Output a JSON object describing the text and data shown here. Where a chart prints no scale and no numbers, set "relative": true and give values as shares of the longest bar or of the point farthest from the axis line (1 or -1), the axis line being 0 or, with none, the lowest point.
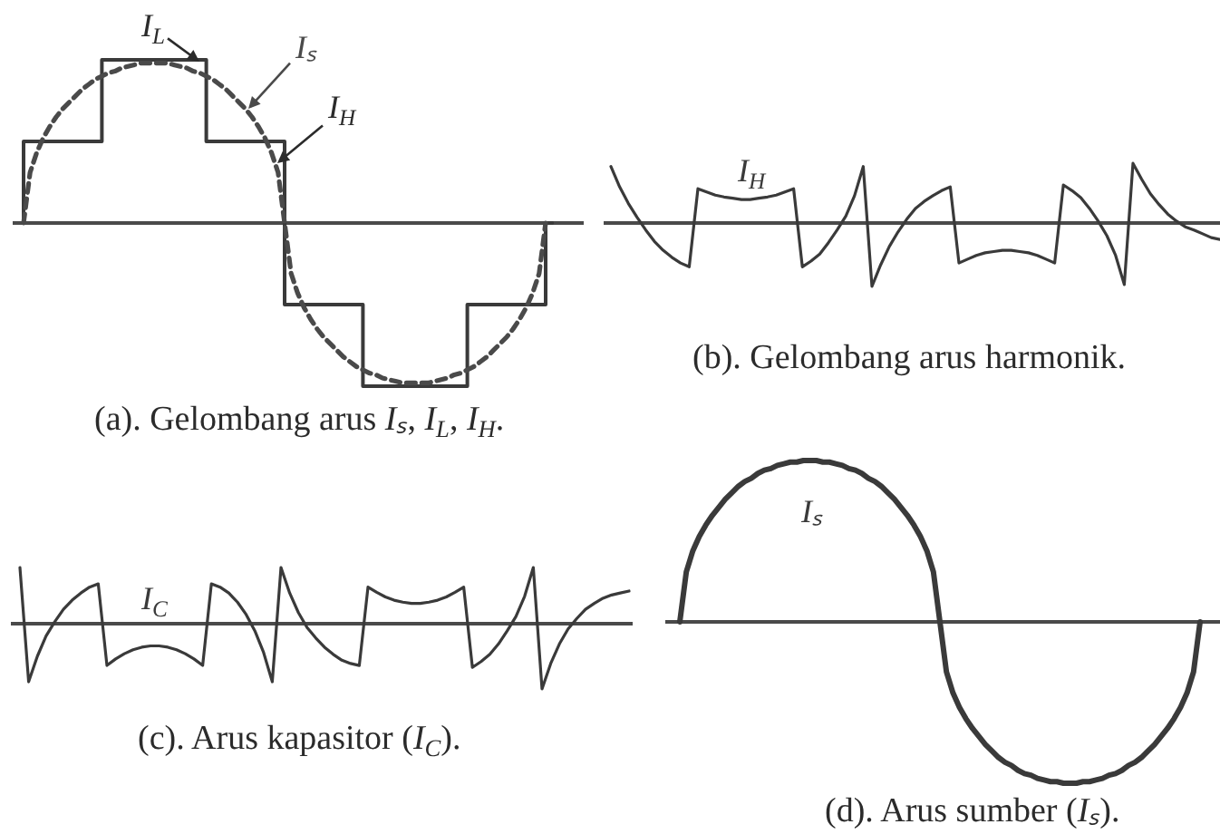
{
  "chart_data": [
    {
      "type": "line",
      "relative": true,
      "title": "(a). Gelombang arus Iₛ, I$_{L}$, I$_{H}$.",
      "annotations": [
        "I$_{L}$",
        "I$_{H}$"
      ],
      "categories": [
        null,
        null,
        null,
        null,
        null,
        null,
        null,
        null,
        null,
        null,
        null,
        null,
        null,
        null,
        null,
        null,
        null,
        null,
        null,
        null,
        null,
        null,
        null,
        null,
        null,
        null,
        null,
        null,
        null,
        null,
        null,
        null,
        null,
        null,
        null,
        null,
        null,
        null,
        null,
        null,
        null,
        null,
        null,
        null,
        null,
        null,
        null,
        null,
        null,
        null,
        null,
        null,
        null,
        null,
        null,
        null,
        null,
        null,
        null,
        null,
        null,
        null,
        null,
        null,
        null,
        null,
        null,
        null,
        null,
        null,
        null,
        null,
        null,
        null,
        null,
        null,
        null,
        null,
        null,
        null,
        null,
        null
      ],
      "series": [
        {
          "type": "step",
          "color": "#3a3a3a",
          "values": [
            0,
            0.5,
            0.5,
            0.5,
            0.5,
            0.5,
            0.5,
            0.5,
            0.5,
            0.5,
            0.5,
            0.5,
            0.5,
            1,
            1,
            1,
            1,
            1,
            1,
            1,
            1,
            1,
            1,
            1,
            1,
            1,
            1,
            1,
            1,
            0.5,
            0.5,
            0.5,
            0.5,
            0.5,
            0.5,
            0.5,
            0.5,
            0.5,
            0.5,
            0.5,
            0.5,
            -0.5,
            -0.5,
            -0.5,
            -0.5,
            -0.5,
            -0.5,
            -0.5,
            -0.5,
            -0.5,
            -0.5,
            -0.5,
            -0.5,
            -1,
            -1,
            -1,
            -1,
            -1,
            -1,
            -1,
            -1,
            -1,
            -1,
            -1,
            -1,
            -1,
            -1,
            -1,
            -1,
            -0.5,
            -0.5,
            -0.5,
            -0.5,
            -0.5,
            -0.5,
            -0.5,
            -0.5,
            -0.5,
            -0.5,
            -0.5,
            -0.5,
            0
          ]
        },
        {
          "name": "Iₛ",
          "color": "#4a4a4a",
          "line_style": "dashed",
          "values": [
            0,
            0.31,
            0.43,
            0.52,
            0.59,
            0.65,
            0.7,
            0.74,
            0.78,
            0.82,
            0.85,
            0.88,
            0.9,
            0.92,
            0.93,
            0.95,
            0.96,
            0.97,
            0.98,
            0.98,
            0.98,
            0.98,
            0.98,
            0.97,
            0.96,
            0.95,
            0.93,
            0.92,
            0.9,
            0.88,
            0.85,
            0.82,
            0.78,
            0.74,
            0.7,
            0.65,
            0.59,
            0.52,
            0.43,
            0.31,
            0,
            -0.31,
            -0.43,
            -0.52,
            -0.59,
            -0.65,
            -0.7,
            -0.74,
            -0.78,
            -0.82,
            -0.85,
            -0.88,
            -0.9,
            -0.92,
            -0.93,
            -0.95,
            -0.96,
            -0.97,
            -0.98,
            -0.98,
            -0.98,
            -0.98,
            -0.98,
            -0.97,
            -0.96,
            -0.95,
            -0.93,
            -0.92,
            -0.9,
            -0.88,
            -0.85,
            -0.82,
            -0.78,
            -0.74,
            -0.7,
            -0.65,
            -0.59,
            -0.52,
            -0.43,
            -0.31,
            0,
            null
          ]
        }
      ]
    },
    {
      "type": "line",
      "relative": true,
      "title": "(b). Gelombang arus harmonik.",
      "categories": [
        null,
        null,
        null,
        null,
        null,
        null,
        null,
        null,
        null,
        null,
        null,
        null,
        null,
        null,
        null,
        null,
        null,
        null,
        null,
        null,
        null,
        null,
        null,
        null,
        null,
        null,
        null,
        null,
        null,
        null,
        null,
        null,
        null,
        null,
        null,
        null,
        null,
        null,
        null,
        null,
        null,
        null,
        null,
        null,
        null,
        null,
        null,
        null,
        null,
        null,
        null,
        null,
        null,
        null,
        null,
        null,
        null,
        null,
        null,
        null,
        null,
        null,
        null,
        null,
        null,
        null,
        null,
        null,
        null,
        null,
        null
      ],
      "series": [
        {
          "name": "I$_{H}$",
          "color": "#3a3a3a",
          "values": [
            0.89,
            0.57,
            0.31,
            0.09,
            -0.11,
            -0.29,
            -0.43,
            -0.54,
            -0.63,
            -0.69,
            0.54,
            0.49,
            0.44,
            0.41,
            0.39,
            0.37,
            0.37,
            0.39,
            0.41,
            0.44,
            0.49,
            0.54,
            -0.69,
            -0.6,
            -0.49,
            -0.31,
            -0.11,
            0.11,
            0.43,
            0.89,
            -1,
            -0.66,
            -0.37,
            -0.14,
            0.06,
            0.23,
            0.34,
            0.43,
            0.51,
            0.57,
            -0.63,
            -0.57,
            -0.51,
            -0.47,
            -0.45,
            -0.43,
            -0.43,
            -0.45,
            -0.47,
            -0.51,
            -0.57,
            -0.63,
            0.6,
            0.51,
            0.4,
            0.23,
            0.03,
            -0.2,
            -0.51,
            -0.97,
            0.94,
            0.69,
            0.46,
            0.29,
            0.14,
            0.03,
            -0.06,
            -0.11,
            -0.17,
            -0.23,
            -0.26
          ]
        }
      ]
    },
    {
      "type": "line",
      "relative": true,
      "title": "(c). Arus kapasitor (I$_{C}$).",
      "categories": [
        null,
        null,
        null,
        null,
        null,
        null,
        null,
        null,
        null,
        null,
        null,
        null,
        null,
        null,
        null,
        null,
        null,
        null,
        null,
        null,
        null,
        null,
        null,
        null,
        null,
        null,
        null,
        null,
        null,
        null,
        null,
        null,
        null,
        null,
        null,
        null,
        null,
        null,
        null,
        null,
        null,
        null,
        null,
        null,
        null,
        null,
        null,
        null,
        null,
        null,
        null,
        null,
        null,
        null,
        null,
        null,
        null,
        null,
        null,
        null,
        null,
        null,
        null,
        null,
        null,
        null,
        null,
        null,
        null,
        null,
        null
      ],
      "series": [
        {
          "name": "I$_{C}$",
          "color": "#3a3a3a",
          "values": [
            0.86,
            -0.89,
            -0.5,
            -0.19,
            0.03,
            0.22,
            0.36,
            0.47,
            0.56,
            0.61,
            -0.64,
            -0.54,
            -0.46,
            -0.4,
            -0.36,
            -0.34,
            -0.34,
            -0.36,
            -0.4,
            -0.46,
            -0.54,
            -0.64,
            0.61,
            0.56,
            0.47,
            0.33,
            0.14,
            -0.11,
            -0.44,
            -0.89,
            0.86,
            0.47,
            0.17,
            -0.06,
            -0.22,
            -0.36,
            -0.47,
            -0.56,
            -0.61,
            -0.64,
            0.56,
            0.48,
            0.41,
            0.36,
            0.33,
            0.31,
            0.31,
            0.33,
            0.36,
            0.41,
            0.48,
            0.56,
            -0.67,
            -0.58,
            -0.47,
            -0.31,
            -0.11,
            0.11,
            0.42,
            0.86,
            -1,
            -0.61,
            -0.31,
            -0.08,
            0.08,
            0.22,
            0.31,
            0.39,
            0.44,
            0.47,
            0.5
          ]
        }
      ]
    },
    {
      "type": "line",
      "relative": true,
      "title": "(d). Arus sumber (Iₛ).",
      "categories": [
        null,
        null,
        null,
        null,
        null,
        null,
        null,
        null,
        null,
        null,
        null,
        null,
        null,
        null,
        null,
        null,
        null,
        null,
        null,
        null,
        null,
        null,
        null,
        null,
        null,
        null,
        null,
        null,
        null,
        null,
        null,
        null,
        null,
        null,
        null,
        null,
        null,
        null,
        null,
        null,
        null,
        null,
        null,
        null,
        null,
        null,
        null,
        null,
        null,
        null,
        null,
        null,
        null,
        null,
        null,
        null,
        null,
        null,
        null,
        null,
        null,
        null,
        null,
        null,
        null,
        null,
        null,
        null,
        null,
        null,
        null,
        null,
        null,
        null,
        null,
        null,
        null,
        null,
        null,
        null,
        null
      ],
      "series": [
        {
          "name": "Iₛ",
          "color": "#3a3a3a",
          "values": [
            0,
            0.31,
            0.44,
            0.53,
            0.6,
            0.66,
            0.71,
            0.76,
            0.8,
            0.84,
            0.87,
            0.89,
            0.92,
            0.94,
            0.95,
            0.97,
            0.98,
            0.99,
            0.99,
            1,
            1,
            1,
            0.99,
            0.99,
            0.98,
            0.97,
            0.95,
            0.94,
            0.92,
            0.89,
            0.87,
            0.84,
            0.8,
            0.76,
            0.71,
            0.66,
            0.6,
            0.53,
            0.44,
            0.31,
            0,
            -0.31,
            -0.44,
            -0.53,
            -0.6,
            -0.66,
            -0.71,
            -0.76,
            -0.8,
            -0.84,
            -0.87,
            -0.89,
            -0.92,
            -0.94,
            -0.95,
            -0.97,
            -0.98,
            -0.99,
            -0.99,
            -1,
            -1,
            -1,
            -0.99,
            -0.99,
            -0.98,
            -0.97,
            -0.95,
            -0.94,
            -0.92,
            -0.89,
            -0.87,
            -0.84,
            -0.8,
            -0.76,
            -0.71,
            -0.66,
            -0.6,
            -0.53,
            -0.44,
            -0.31,
            0
          ]
        }
      ]
    }
  ]
}
